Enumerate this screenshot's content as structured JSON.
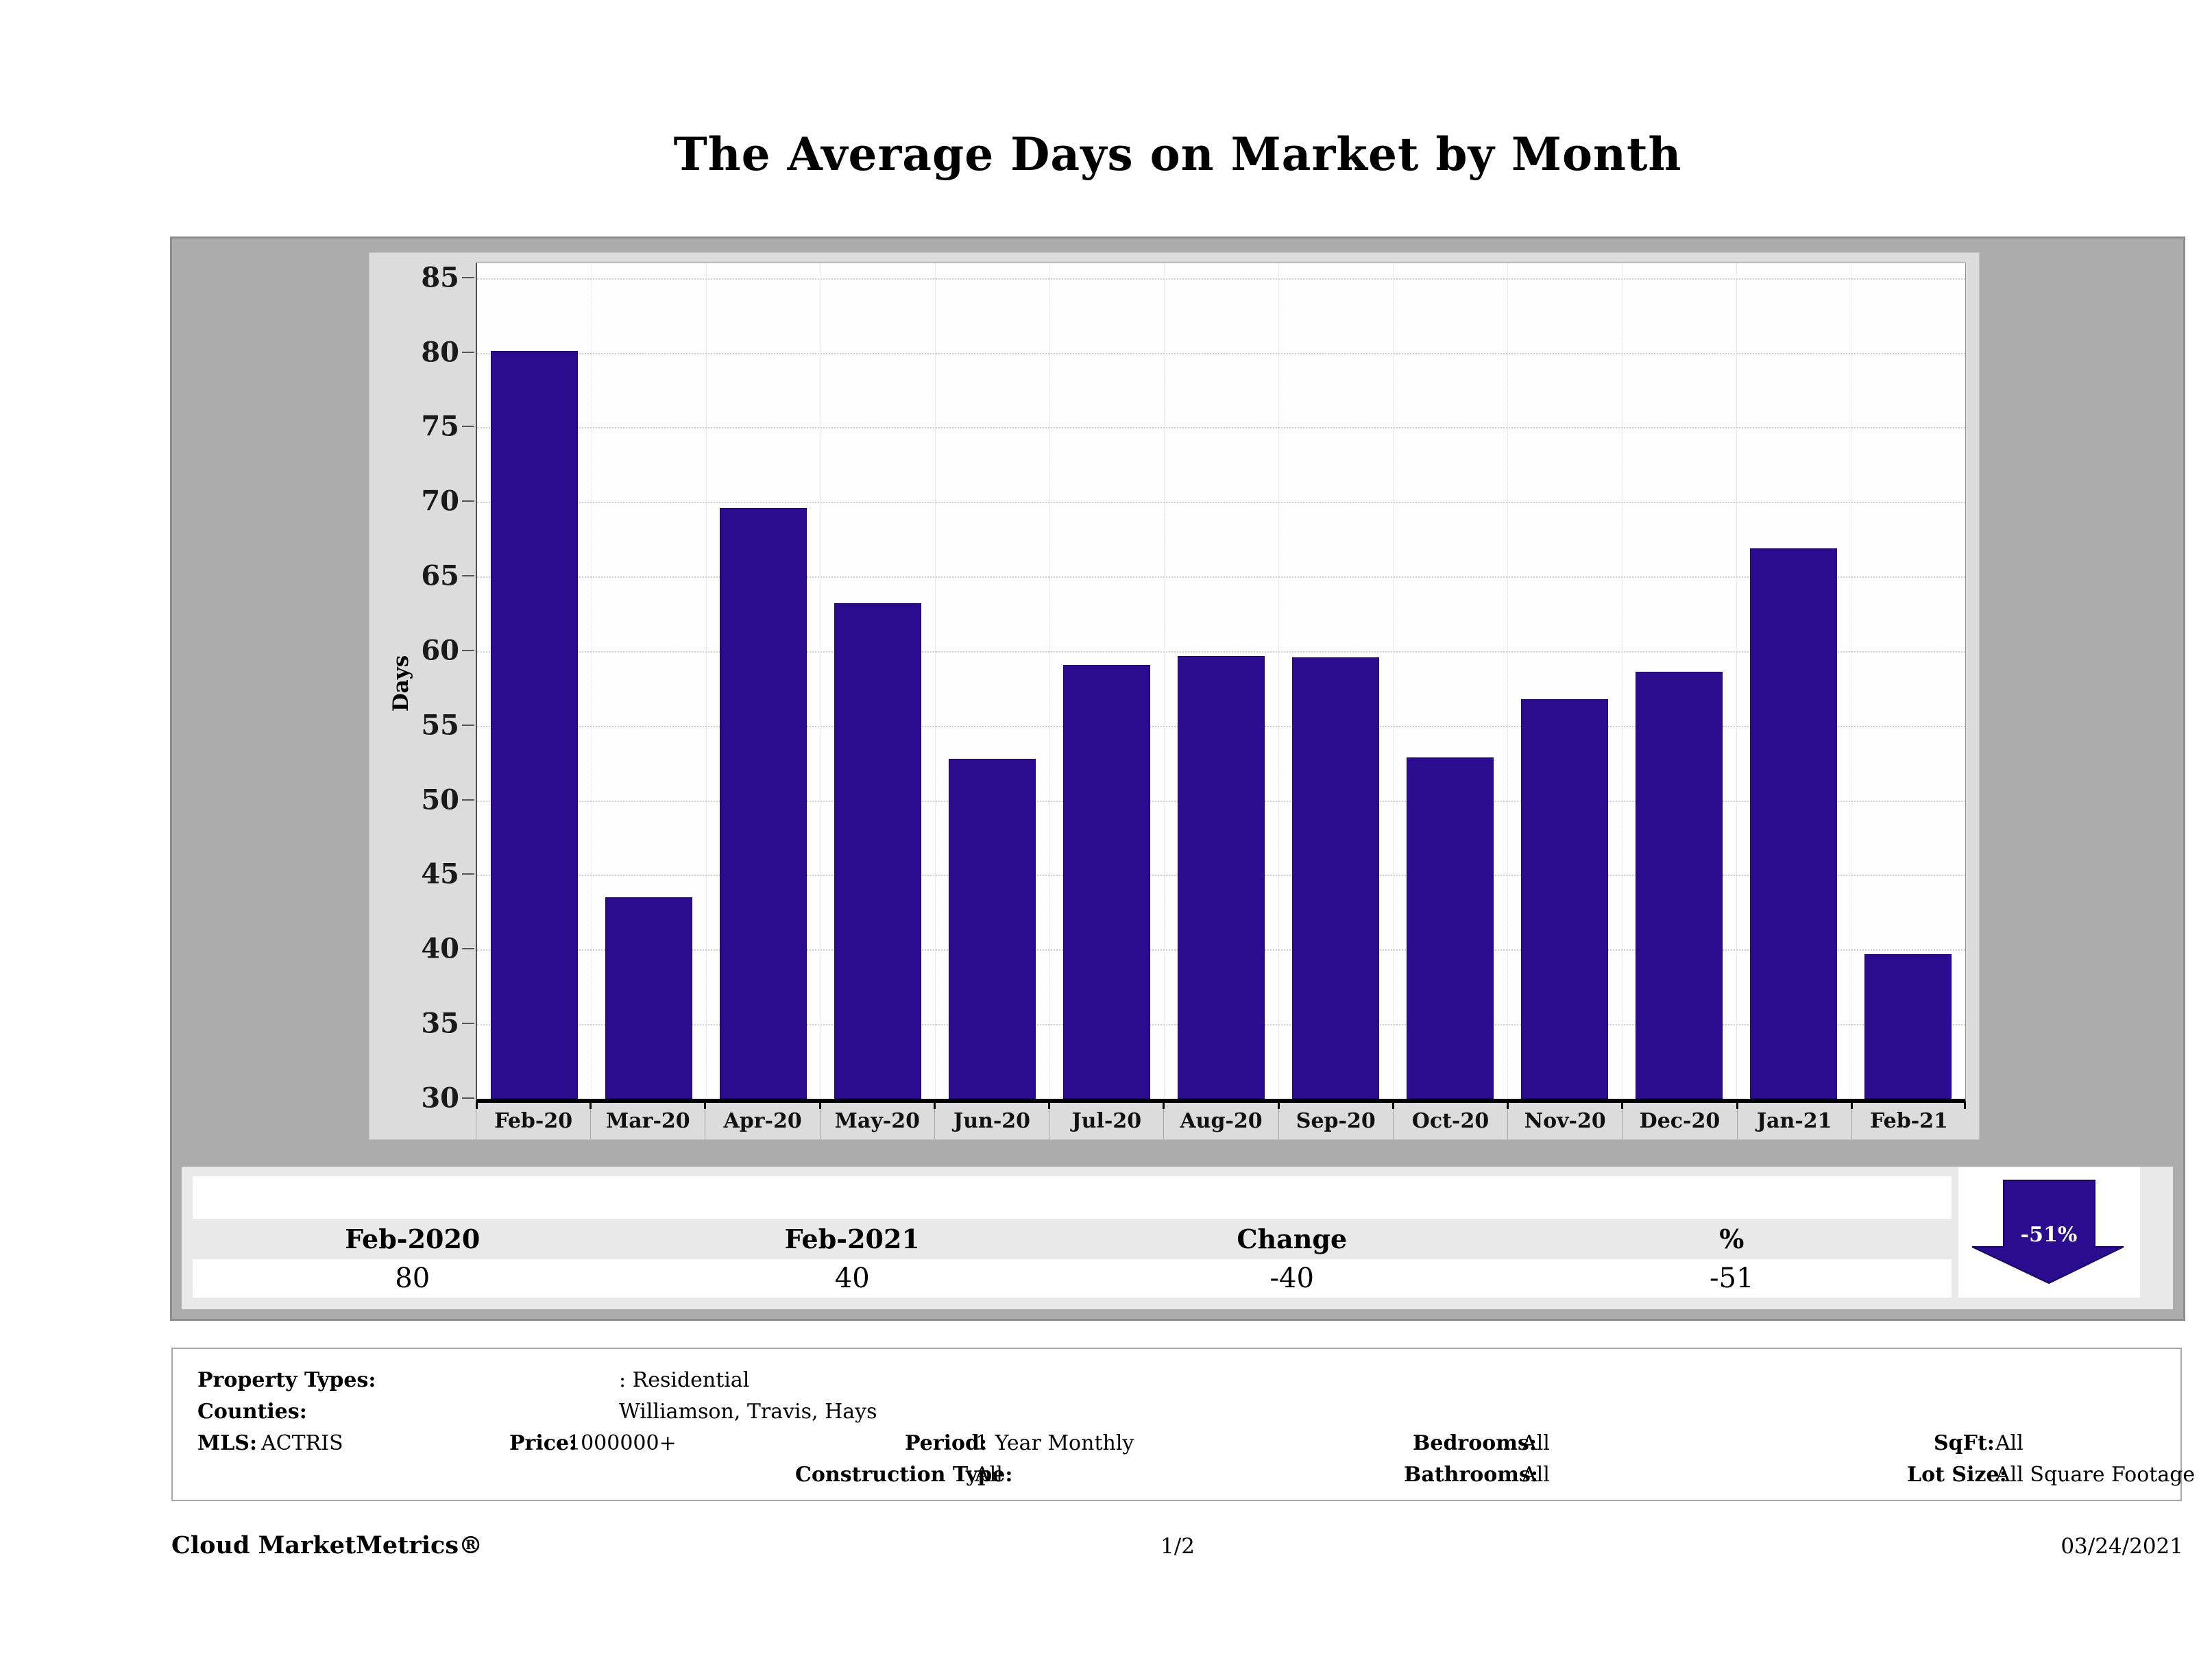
{
  "title": "The Average Days on Market by Month",
  "chart_data": {
    "type": "bar",
    "title": "The Average Days on Market by Month",
    "categories": [
      "Feb-20",
      "Mar-20",
      "Apr-20",
      "May-20",
      "Jun-20",
      "Jul-20",
      "Aug-20",
      "Sep-20",
      "Oct-20",
      "Nov-20",
      "Dec-20",
      "Jan-21",
      "Feb-21"
    ],
    "values": [
      80.1,
      43.5,
      69.6,
      63.2,
      52.8,
      59.1,
      59.7,
      59.6,
      52.9,
      56.8,
      58.6,
      66.9,
      39.7
    ],
    "xlabel": "",
    "ylabel": "Days",
    "ylim": [
      30,
      86
    ],
    "yticks": [
      30,
      35,
      40,
      45,
      50,
      55,
      60,
      65,
      70,
      75,
      80,
      85
    ],
    "grid": "horizontal-dashed",
    "legend": "none",
    "bar_color": "#2b0c8e"
  },
  "summary_table": {
    "headers": [
      "Feb-2020",
      "Feb-2021",
      "Change",
      "%"
    ],
    "values": [
      "80",
      "40",
      "-40",
      "-51"
    ]
  },
  "trend_arrow": {
    "label": "-51%",
    "direction": "down",
    "color": "#2b0c8e"
  },
  "filters": {
    "property_types_label": "Property Types:",
    "property_types_value": ": Residential",
    "counties_label": "Counties:",
    "counties_value": "Williamson, Travis, Hays",
    "mls_label": "MLS:",
    "mls_value": "ACTRIS",
    "price_label": "Price:",
    "price_value": "1000000+",
    "period_label": "Period:",
    "period_value": "1 Year Monthly",
    "bedrooms_label": "Bedrooms:",
    "bedrooms_value": "All",
    "sqft_label": "SqFt:",
    "sqft_value": "All",
    "construction_type_label": "Construction Type:",
    "construction_type_value": "All",
    "bathrooms_label": "Bathrooms:",
    "bathrooms_value": "All",
    "lot_size_label": "Lot Size:",
    "lot_size_value": "All Square Footage"
  },
  "footer": {
    "brand": "Cloud MarketMetrics®",
    "page": "1/2",
    "date": "03/24/2021"
  }
}
